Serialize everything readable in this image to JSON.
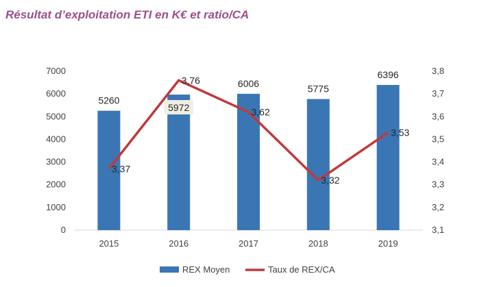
{
  "title": "Résultat d’exploitation ETI en K€ et ratio/CA",
  "colors": {
    "bar": "#3a76b4",
    "line": "#c0393b",
    "title": "#9b4f8a"
  },
  "chart_data": {
    "type": "bar",
    "categories": [
      "2015",
      "2016",
      "2017",
      "2018",
      "2019"
    ],
    "series": [
      {
        "name": "REX Moyen",
        "type": "bar",
        "axis": "left",
        "values": [
          5260,
          5972,
          6006,
          5775,
          6396
        ],
        "labels": [
          "5260",
          "5972",
          "6006",
          "5775",
          "6396"
        ]
      },
      {
        "name": "Taux de REX/CA",
        "type": "line",
        "axis": "right",
        "values": [
          3.37,
          3.76,
          3.62,
          3.32,
          3.53
        ],
        "labels": [
          "3,37",
          "3,76",
          "3,62",
          "3,32",
          "3,53"
        ]
      }
    ],
    "yleft": {
      "min": 0,
      "max": 7000,
      "ticks": [
        "0",
        "1000",
        "2000",
        "3000",
        "4000",
        "5000",
        "6000",
        "7000"
      ]
    },
    "yright": {
      "min": 3.1,
      "max": 3.8,
      "ticks": [
        "3,1",
        "3,2",
        "3,3",
        "3,4",
        "3,5",
        "3,6",
        "3,7",
        "3,8"
      ]
    },
    "grid": false,
    "legend": "bottom"
  }
}
